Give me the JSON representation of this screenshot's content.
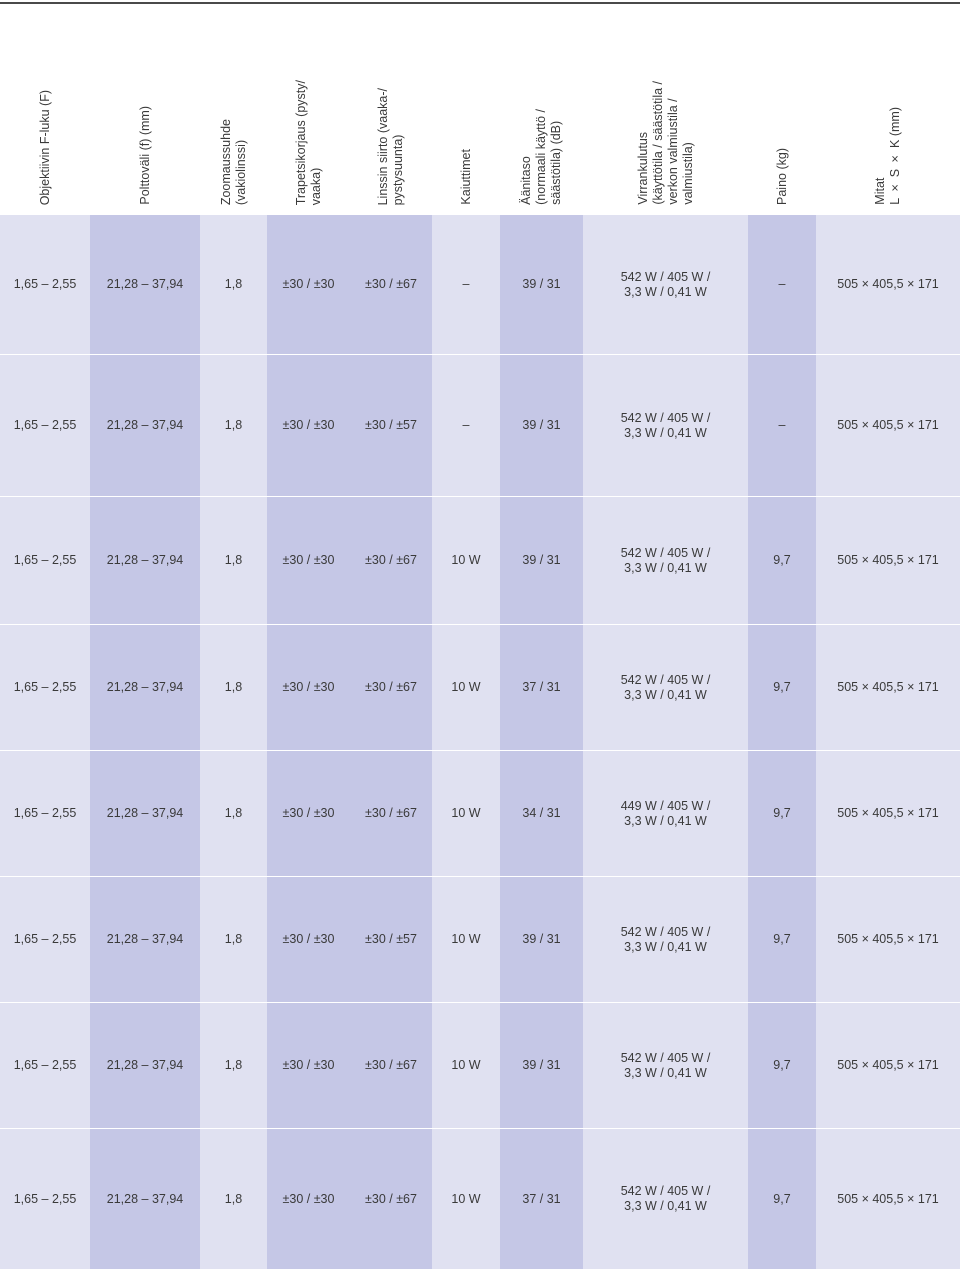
{
  "headers": [
    "Objektiivin F-luku (F)",
    "Polttoväli (f) (mm)",
    "Zoomaussuhde\n(vakiolinssi)",
    "Trapetsikorjaus (pysty/\nvaaka)",
    "Linssin siirto (vaaka-/\npystysuunta)",
    "Kaiuttimet",
    "Äänitaso\n(normaali käyttö /\nsäästötila) (dB)",
    "Virrankulutus\n(käyttötila / säästötila /\nverkon valmiustila /\nvalmiustila)",
    "Paino (kg)",
    "Mitat\nL × S × K (mm)"
  ],
  "rows": [
    [
      "1,65 – 2,55",
      "21,28 – 37,94",
      "1,8",
      "±30 / ±30",
      "±30 / ±67",
      "–",
      "39 / 31",
      "542 W / 405 W /\n3,3 W / 0,41 W",
      "–",
      "505 × 405,5 × 171"
    ],
    [
      "1,65 – 2,55",
      "21,28 – 37,94",
      "1,8",
      "±30 / ±30",
      "±30 / ±57",
      "–",
      "39 / 31",
      "542 W / 405 W /\n3,3 W / 0,41 W",
      "–",
      "505 × 405,5 × 171"
    ],
    [
      "1,65 – 2,55",
      "21,28 – 37,94",
      "1,8",
      "±30 / ±30",
      "±30 / ±67",
      "10 W",
      "39 / 31",
      "542 W / 405 W /\n3,3 W / 0,41 W",
      "9,7",
      "505 × 405,5 × 171"
    ],
    [
      "1,65 – 2,55",
      "21,28 – 37,94",
      "1,8",
      "±30 / ±30",
      "±30 / ±67",
      "10 W",
      "37 / 31",
      "542 W / 405 W /\n3,3 W / 0,41 W",
      "9,7",
      "505 × 405,5 × 171"
    ],
    [
      "1,65 – 2,55",
      "21,28 – 37,94",
      "1,8",
      "±30 / ±30",
      "±30 / ±67",
      "10 W",
      "34 / 31",
      "449 W / 405 W /\n3,3 W / 0,41 W",
      "9,7",
      "505 × 405,5 × 171"
    ],
    [
      "1,65 – 2,55",
      "21,28 – 37,94",
      "1,8",
      "±30 / ±30",
      "±30 / ±57",
      "10 W",
      "39 / 31",
      "542 W / 405 W /\n3,3 W / 0,41 W",
      "9,7",
      "505 × 405,5 × 171"
    ],
    [
      "1,65 – 2,55",
      "21,28 – 37,94",
      "1,8",
      "±30 / ±30",
      "±30 / ±67",
      "10 W",
      "39 / 31",
      "542 W / 405 W /\n3,3 W / 0,41 W",
      "9,7",
      "505 × 405,5 × 171"
    ],
    [
      "1,65 – 2,55",
      "21,28 – 37,94",
      "1,8",
      "±30 / ±30",
      "±30 / ±67",
      "10 W",
      "37 / 31",
      "542 W / 405 W /\n3,3 W / 0,41 W",
      "9,7",
      "505 × 405,5 × 171"
    ]
  ],
  "colors": {
    "band_light": "#e0e1f1",
    "band_dark": "#c5c7e6",
    "text": "#3a3a3a",
    "rule": "#4a4a4a"
  }
}
